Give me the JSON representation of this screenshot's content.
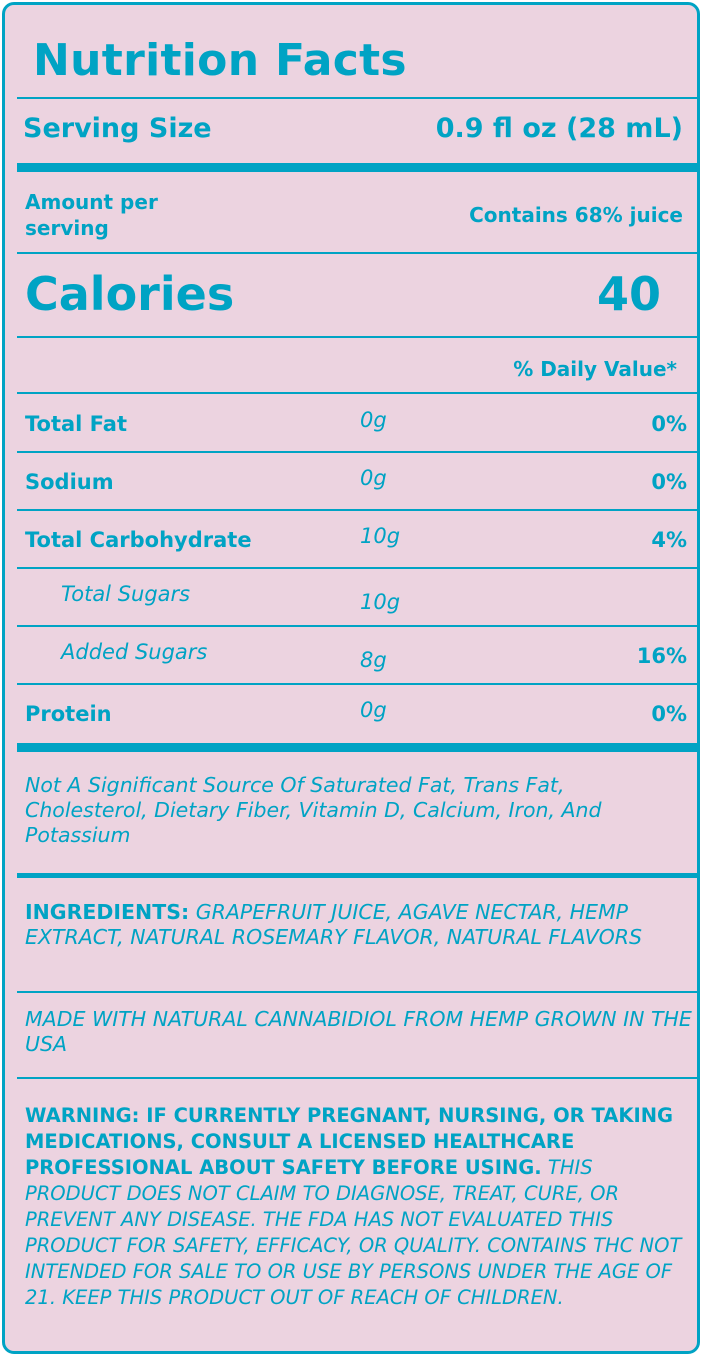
{
  "title": "Nutrition Facts",
  "serving": {
    "label": "Serving Size",
    "value": "0.9 fl oz (28 mL)"
  },
  "amount_per_serving": "Amount per serving",
  "juice_note": "Contains 68% juice",
  "calories": {
    "label": "Calories",
    "value": "40"
  },
  "daily_value_header": "% Daily Value*",
  "nutrients": [
    {
      "name": "Total Fat",
      "amount": "0g",
      "dv": "0%",
      "sub": false
    },
    {
      "name": "Sodium",
      "amount": "0g",
      "dv": "0%",
      "sub": false
    },
    {
      "name": "Total Carbohydrate",
      "amount": "10g",
      "dv": "4%",
      "sub": false
    },
    {
      "name": "Total Sugars",
      "amount": "10g",
      "dv": "",
      "sub": true
    },
    {
      "name": "Added Sugars",
      "amount": "8g",
      "dv": "16%",
      "sub": true
    },
    {
      "name": "Protein",
      "amount": "0g",
      "dv": "0%",
      "sub": false
    }
  ],
  "not_significant": "Not A Significant Source Of Saturated Fat, Trans Fat, Cholesterol, Dietary Fiber, Vitamin D, Calcium, Iron, And Potassium",
  "ingredients": {
    "label": "INGREDIENTS:",
    "text": "GRAPEFRUIT JUICE, AGAVE NECTAR, HEMP EXTRACT, NATURAL ROSEMARY FLAVOR, NATURAL FLAVORS"
  },
  "origin_note": "MADE WITH NATURAL CANNABIDIOL FROM HEMP GROWN IN THE USA",
  "warning": {
    "bold": "WARNING: IF CURRENTLY PREGNANT, NURSING, OR TAKING MEDICATIONS, CONSULT A LICENSED HEALTHCARE PROFESSIONAL ABOUT SAFETY BEFORE USING.",
    "italic": "THIS PRODUCT DOES NOT CLAIM TO DIAGNOSE, TREAT, CURE, OR PREVENT ANY DISEASE. THE FDA HAS NOT EVALUATED THIS PRODUCT FOR SAFETY, EFFICACY, OR QUALITY. CONTAINS THC NOT INTENDED FOR SALE TO OR USE BY PERSONS UNDER THE AGE OF 21. KEEP THIS PRODUCT OUT OF REACH OF CHILDREN."
  },
  "colors": {
    "accent": "#00a3c4",
    "background": "#ecd3e0"
  }
}
